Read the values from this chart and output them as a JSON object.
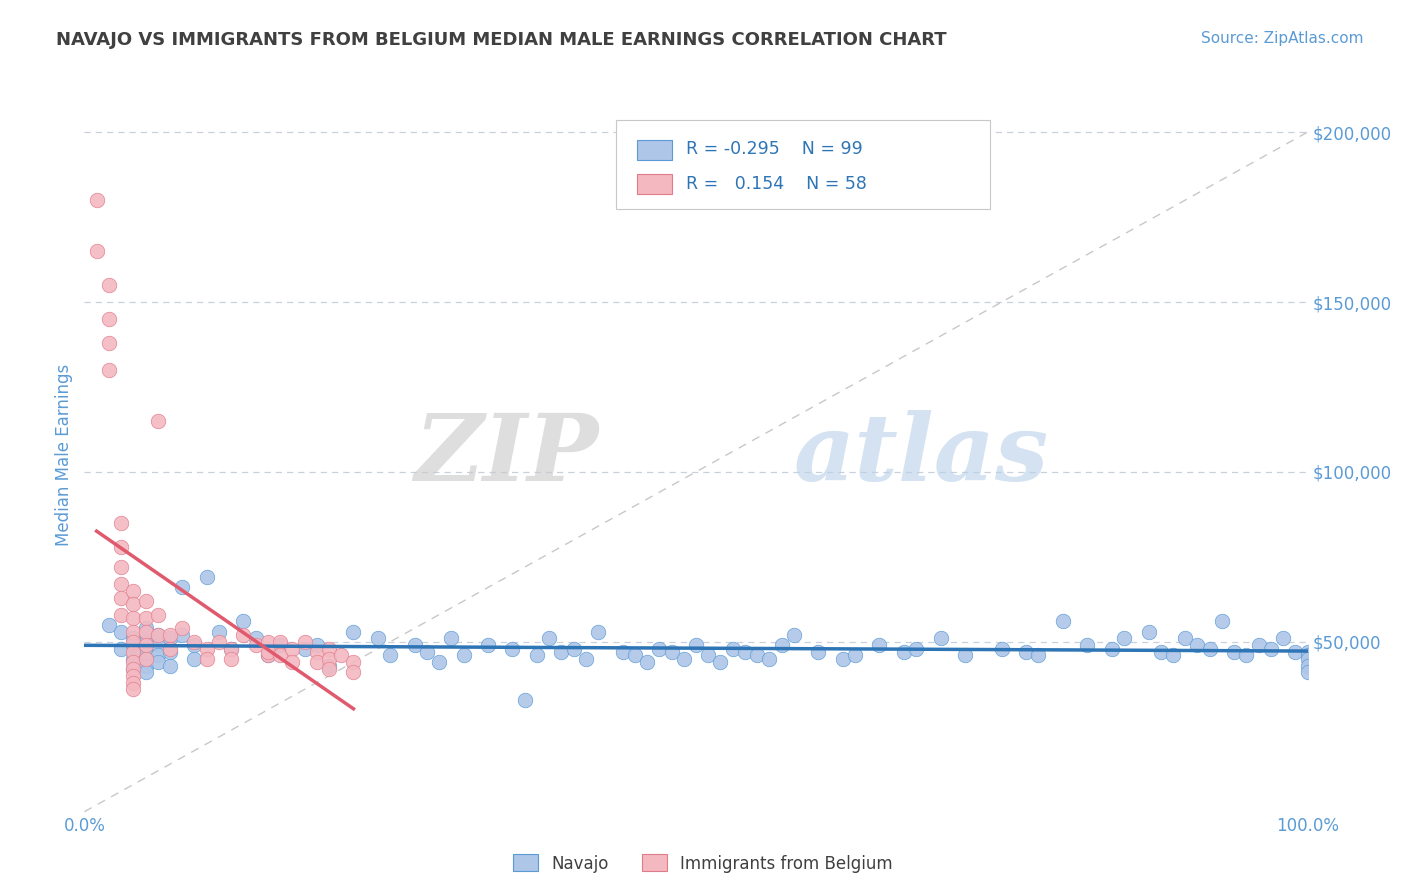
{
  "title": "NAVAJO VS IMMIGRANTS FROM BELGIUM MEDIAN MALE EARNINGS CORRELATION CHART",
  "source": "Source: ZipAtlas.com",
  "ylabel": "Median Male Earnings",
  "watermark_zip": "ZIP",
  "watermark_atlas": "atlas",
  "xlim": [
    0.0,
    1.0
  ],
  "ylim": [
    0,
    210000
  ],
  "yticks": [
    50000,
    100000,
    150000,
    200000
  ],
  "ytick_labels": [
    "$50,000",
    "$100,000",
    "$150,000",
    "$200,000"
  ],
  "xtick_positions": [
    0.0,
    0.1,
    0.2,
    0.3,
    0.4,
    0.5,
    0.6,
    0.7,
    0.8,
    0.9,
    1.0
  ],
  "xtick_labels": [
    "0.0%",
    "",
    "",
    "",
    "",
    "",
    "",
    "",
    "",
    "",
    "100.0%"
  ],
  "navajo_color": "#aec6e8",
  "navajo_edge": "#5b9bd5",
  "belgium_color": "#f4b8c1",
  "belgium_edge": "#e07b8a",
  "trend_navajo_color": "#2e75b6",
  "trend_belgium_color": "#e05a6e",
  "diagonal_color": "#c8c8c8",
  "grid_color": "#c8d0dc",
  "title_color": "#404040",
  "axis_color": "#5b9bd5",
  "source_color": "#5b9bd5",
  "navajo_x": [
    0.02,
    0.03,
    0.03,
    0.04,
    0.04,
    0.04,
    0.04,
    0.05,
    0.05,
    0.05,
    0.05,
    0.05,
    0.05,
    0.06,
    0.06,
    0.06,
    0.06,
    0.07,
    0.07,
    0.07,
    0.08,
    0.08,
    0.09,
    0.09,
    0.1,
    0.11,
    0.12,
    0.13,
    0.14,
    0.15,
    0.16,
    0.18,
    0.19,
    0.2,
    0.22,
    0.24,
    0.25,
    0.27,
    0.28,
    0.29,
    0.3,
    0.31,
    0.33,
    0.35,
    0.36,
    0.37,
    0.38,
    0.39,
    0.4,
    0.41,
    0.42,
    0.44,
    0.45,
    0.46,
    0.47,
    0.48,
    0.49,
    0.5,
    0.51,
    0.52,
    0.53,
    0.54,
    0.55,
    0.56,
    0.57,
    0.58,
    0.6,
    0.62,
    0.63,
    0.65,
    0.67,
    0.68,
    0.7,
    0.72,
    0.75,
    0.77,
    0.78,
    0.8,
    0.82,
    0.84,
    0.85,
    0.87,
    0.88,
    0.89,
    0.9,
    0.91,
    0.92,
    0.93,
    0.94,
    0.95,
    0.96,
    0.97,
    0.98,
    0.99,
    1.0,
    1.0,
    1.0,
    1.0,
    1.0
  ],
  "navajo_y": [
    55000,
    53000,
    48000,
    51000,
    49000,
    45000,
    42000,
    54000,
    50000,
    47000,
    46000,
    43000,
    41000,
    52000,
    49000,
    46000,
    44000,
    51000,
    47000,
    43000,
    66000,
    52000,
    49000,
    45000,
    69000,
    53000,
    48000,
    56000,
    51000,
    46000,
    49000,
    48000,
    49000,
    43000,
    53000,
    51000,
    46000,
    49000,
    47000,
    44000,
    51000,
    46000,
    49000,
    48000,
    33000,
    46000,
    51000,
    47000,
    48000,
    45000,
    53000,
    47000,
    46000,
    44000,
    48000,
    47000,
    45000,
    49000,
    46000,
    44000,
    48000,
    47000,
    46000,
    45000,
    49000,
    52000,
    47000,
    45000,
    46000,
    49000,
    47000,
    48000,
    51000,
    46000,
    48000,
    47000,
    46000,
    56000,
    49000,
    48000,
    51000,
    53000,
    47000,
    46000,
    51000,
    49000,
    48000,
    56000,
    47000,
    46000,
    49000,
    48000,
    51000,
    47000,
    47000,
    46000,
    45000,
    43000,
    41000
  ],
  "belgium_x": [
    0.01,
    0.01,
    0.02,
    0.02,
    0.02,
    0.02,
    0.03,
    0.03,
    0.03,
    0.03,
    0.03,
    0.03,
    0.04,
    0.04,
    0.04,
    0.04,
    0.04,
    0.04,
    0.04,
    0.04,
    0.04,
    0.04,
    0.04,
    0.05,
    0.05,
    0.05,
    0.05,
    0.05,
    0.06,
    0.06,
    0.06,
    0.07,
    0.07,
    0.08,
    0.09,
    0.1,
    0.1,
    0.11,
    0.12,
    0.12,
    0.13,
    0.14,
    0.15,
    0.15,
    0.15,
    0.16,
    0.16,
    0.17,
    0.17,
    0.18,
    0.19,
    0.19,
    0.2,
    0.2,
    0.2,
    0.21,
    0.22,
    0.22
  ],
  "belgium_y": [
    180000,
    165000,
    155000,
    145000,
    138000,
    130000,
    85000,
    78000,
    72000,
    67000,
    63000,
    58000,
    65000,
    61000,
    57000,
    53000,
    50000,
    47000,
    44000,
    42000,
    40000,
    38000,
    36000,
    62000,
    57000,
    53000,
    49000,
    45000,
    115000,
    58000,
    52000,
    52000,
    48000,
    54000,
    50000,
    48000,
    45000,
    50000,
    48000,
    45000,
    52000,
    49000,
    46000,
    50000,
    47000,
    50000,
    46000,
    48000,
    44000,
    50000,
    47000,
    44000,
    48000,
    45000,
    42000,
    46000,
    44000,
    41000
  ]
}
